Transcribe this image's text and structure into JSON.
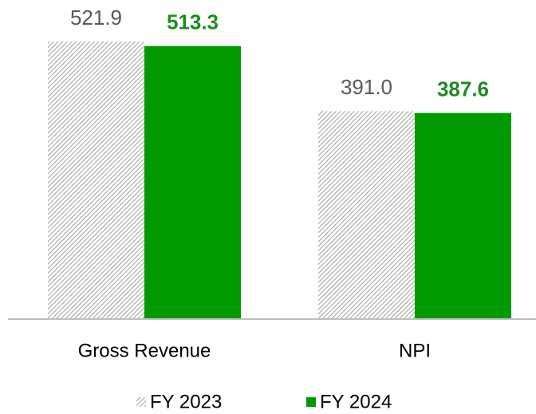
{
  "chart_data": {
    "type": "bar",
    "categories": [
      "Gross Revenue",
      "NPI"
    ],
    "series": [
      {
        "name": "FY 2023",
        "color": "#a6a6a6",
        "pattern": "hatch",
        "values": [
          521.9,
          391
        ],
        "value_labels": [
          "521.9",
          "391.0"
        ],
        "label_color": "#595959",
        "label_bold": false
      },
      {
        "name": "FY 2024",
        "color": "#009900",
        "values": [
          513.3,
          387.6
        ],
        "label_color": "#1e8c1e",
        "label_bold": true
      }
    ],
    "ylim": [
      0,
      600
    ],
    "legend": "bottom"
  }
}
